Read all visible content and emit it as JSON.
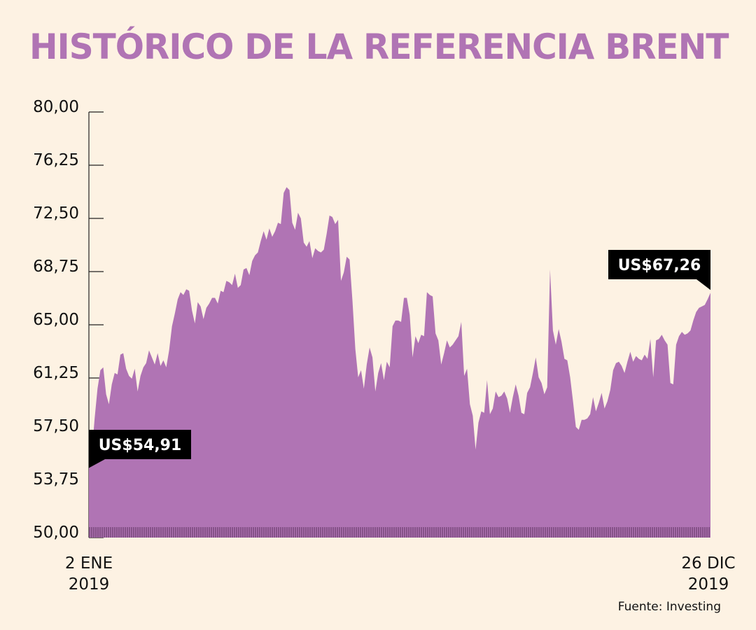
{
  "header": {
    "title": "HISTÓRICO DE LA REFERENCIA BRENT"
  },
  "x_axis": {
    "start_label": "2 ENE",
    "start_year": "2019",
    "end_label": "26 DIC",
    "end_year": "2019"
  },
  "source": "Fuente: Investing",
  "colors": {
    "area": "#b074b4",
    "background": "#fdf2e3",
    "callout": "#000000",
    "title": "#b074b4"
  },
  "chart_data": {
    "type": "area",
    "title": "HISTÓRICO DE LA REFERENCIA BRENT",
    "xlabel": "",
    "ylabel": "",
    "ylim": [
      50,
      80
    ],
    "y_ticks": [
      "80,00",
      "76,25",
      "72,50",
      "68,75",
      "65,00",
      "61,25",
      "57,50",
      "53,75",
      "50,00"
    ],
    "y_tick_values": [
      80,
      76.25,
      72.5,
      68.75,
      65,
      61.25,
      57.5,
      53.75,
      50
    ],
    "x_range": [
      "2019-01-02",
      "2019-12-26"
    ],
    "series": [
      {
        "name": "Brent",
        "values": [
          54.91,
          55.9,
          58.4,
          60.5,
          61.8,
          62.0,
          60.1,
          59.4,
          60.8,
          61.6,
          61.5,
          62.9,
          63.0,
          61.9,
          61.4,
          61.2,
          61.9,
          60.3,
          61.4,
          62.0,
          62.3,
          63.2,
          62.7,
          62.2,
          63.0,
          62.1,
          62.5,
          62.0,
          63.2,
          64.9,
          65.8,
          66.8,
          67.3,
          67.1,
          67.5,
          67.4,
          66.0,
          65.1,
          66.6,
          66.3,
          65.4,
          66.2,
          66.5,
          66.9,
          66.9,
          66.5,
          67.4,
          67.3,
          68.1,
          68.0,
          67.8,
          68.6,
          67.6,
          67.8,
          68.9,
          69.0,
          68.5,
          69.5,
          69.9,
          70.1,
          70.9,
          71.6,
          71.0,
          71.8,
          71.2,
          71.6,
          72.2,
          72.1,
          74.3,
          74.7,
          74.5,
          72.2,
          71.7,
          72.9,
          72.5,
          70.8,
          70.5,
          70.9,
          69.7,
          70.4,
          70.2,
          70.1,
          70.3,
          71.4,
          72.7,
          72.6,
          72.1,
          72.4,
          68.1,
          68.7,
          69.8,
          69.6,
          66.7,
          63.3,
          61.3,
          61.8,
          60.5,
          62.2,
          63.4,
          62.7,
          60.3,
          61.6,
          62.3,
          61.1,
          62.4,
          62.0,
          64.9,
          65.3,
          65.3,
          65.2,
          66.9,
          66.9,
          65.7,
          62.7,
          64.2,
          63.7,
          64.3,
          64.2,
          67.3,
          67.1,
          67.0,
          64.4,
          63.9,
          62.2,
          63.0,
          63.9,
          63.4,
          63.6,
          63.9,
          64.2,
          65.2,
          61.4,
          61.9,
          59.4,
          58.6,
          56.2,
          58.1,
          58.9,
          58.8,
          61.1,
          58.7,
          59.1,
          60.3,
          59.9,
          60.0,
          60.3,
          59.8,
          58.8,
          59.9,
          60.8,
          60.0,
          58.8,
          58.7,
          60.2,
          60.6,
          61.6,
          62.7,
          61.3,
          60.9,
          60.1,
          60.6,
          68.9,
          64.6,
          63.6,
          64.7,
          63.8,
          62.6,
          62.5,
          61.3,
          59.6,
          57.8,
          57.6,
          58.3,
          58.3,
          58.4,
          58.7,
          59.9,
          58.9,
          59.5,
          60.2,
          59.1,
          59.6,
          60.4,
          61.8,
          62.3,
          62.4,
          62.1,
          61.6,
          62.4,
          63.1,
          62.4,
          62.8,
          62.6,
          62.5,
          62.9,
          62.6,
          64.0,
          61.3,
          63.9,
          64.0,
          64.3,
          63.9,
          63.6,
          60.9,
          60.8,
          63.6,
          64.2,
          64.5,
          64.3,
          64.4,
          64.6,
          65.3,
          65.9,
          66.2,
          66.3,
          66.4,
          66.8,
          67.26
        ]
      }
    ],
    "annotations": [
      {
        "text": "US$54,91",
        "position": "start"
      },
      {
        "text": "US$67,26",
        "position": "end"
      }
    ]
  }
}
